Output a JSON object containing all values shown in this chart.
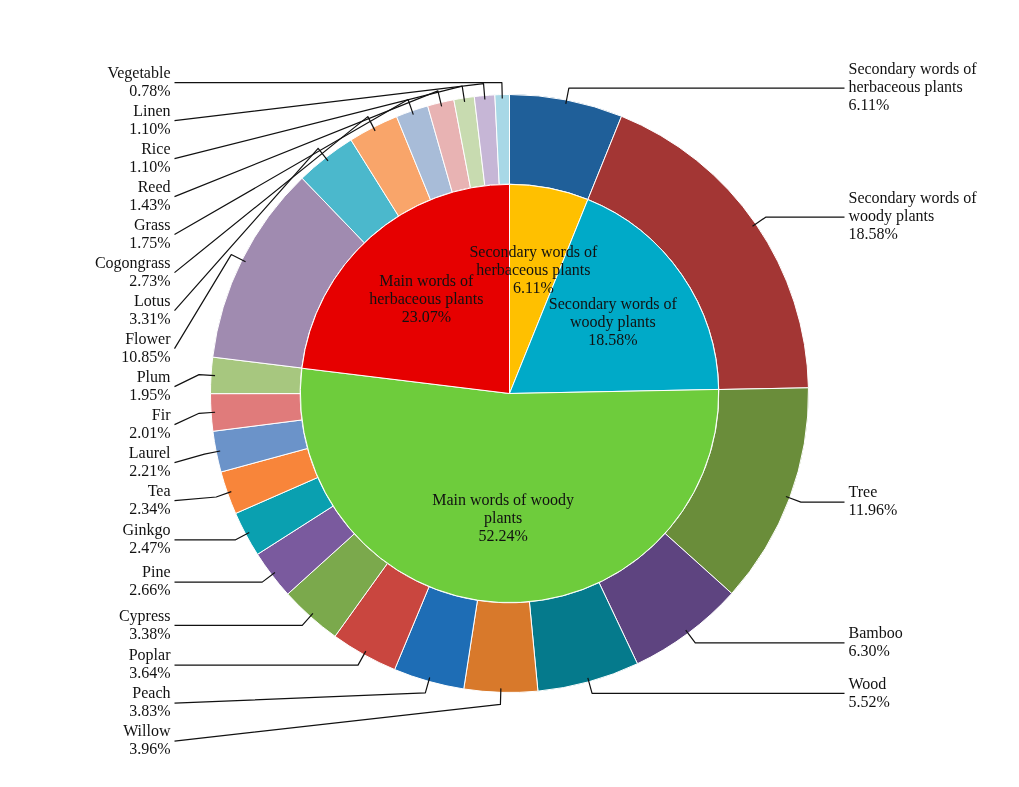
{
  "chart_data": [
    {
      "type": "pie",
      "legend": false,
      "categories": [
        "Secondary words of herbaceous plants",
        "Secondary words of woody plants",
        "Main words of woody plants",
        "Main words of herbaceous plants"
      ],
      "values": [
        6.11,
        18.58,
        52.24,
        23.07
      ],
      "colors": [
        "#ffc000",
        "#00aac8",
        "#6ecc3c",
        "#e60000"
      ],
      "value_labels": [
        "6.11%",
        "18.58%",
        "52.24%",
        "23.07%"
      ]
    },
    {
      "type": "donut",
      "legend": false,
      "categories": [
        "Secondary words of herbaceous plants",
        "Secondary words of woody plants",
        "Tree",
        "Bamboo",
        "Wood",
        "Willow",
        "Peach",
        "Poplar",
        "Cypress",
        "Pine",
        "Ginkgo",
        "Tea",
        "Laurel",
        "Fir",
        "Plum",
        "Flower",
        "Lotus",
        "Cogongrass",
        "Grass",
        "Reed",
        "Rice",
        "Linen",
        "Vegetable"
      ],
      "values": [
        6.11,
        18.58,
        11.96,
        6.3,
        5.52,
        3.96,
        3.83,
        3.64,
        3.38,
        2.66,
        2.47,
        2.34,
        2.21,
        2.01,
        1.95,
        10.85,
        3.31,
        2.73,
        1.75,
        1.43,
        1.1,
        1.1,
        0.78
      ],
      "colors": [
        "#1f5f99",
        "#a33634",
        "#6a8d3a",
        "#5e4480",
        "#057a8c",
        "#d8792b",
        "#1e6db5",
        "#c9463f",
        "#7ba94c",
        "#7a5a9e",
        "#0aa0b0",
        "#f8853a",
        "#6b93c9",
        "#e07b7b",
        "#a7c77f",
        "#a08bb0",
        "#4bb8cc",
        "#f9a56a",
        "#a8bcd8",
        "#e8b3b3",
        "#c8dbb0",
        "#c6b6d6",
        "#a8d8e6"
      ],
      "value_labels": [
        "6.11%",
        "18.58%",
        "11.96%",
        "6.30%",
        "5.52%",
        "3.96%",
        "3.83%",
        "3.64%",
        "3.38%",
        "2.66%",
        "2.47%",
        "2.34%",
        "2.21%",
        "2.01%",
        "1.95%",
        "10.85%",
        "3.31%",
        "2.73%",
        "1.75%",
        "1.43%",
        "1.10%",
        "1.10%",
        "0.78%"
      ]
    }
  ]
}
